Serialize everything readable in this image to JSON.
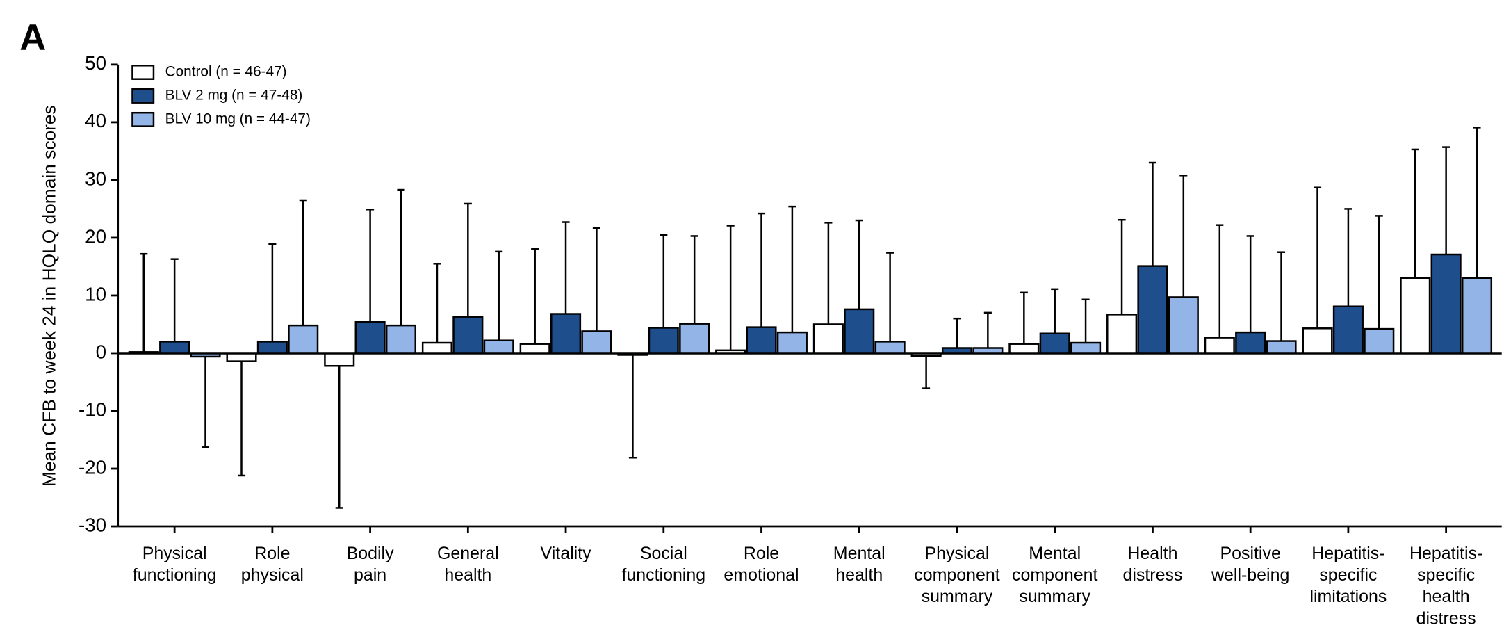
{
  "panel_label": "A",
  "chart_data": {
    "type": "bar",
    "ylabel": "Mean CFB to week 24 in HQLQ domain scores",
    "categories": [
      [
        "Physical",
        "functioning"
      ],
      [
        "Role",
        "physical"
      ],
      [
        "Bodily",
        "pain"
      ],
      [
        "General",
        "health"
      ],
      [
        "Vitality"
      ],
      [
        "Social",
        "functioning"
      ],
      [
        "Role",
        "emotional"
      ],
      [
        "Mental",
        "health"
      ],
      [
        "Physical",
        "component",
        "summary"
      ],
      [
        "Mental",
        "component",
        "summary"
      ],
      [
        "Health",
        "distress"
      ],
      [
        "Positive",
        "well-being"
      ],
      [
        "Hepatitis-",
        "specific",
        "limitations"
      ],
      [
        "Hepatitis-",
        "specific",
        "health",
        "distress"
      ]
    ],
    "series": [
      {
        "name": "Control (n = 46-47)",
        "color": "#ffffff",
        "values": [
          0.2,
          -1.4,
          -2.2,
          1.8,
          1.6,
          -0.3,
          0.5,
          5.0,
          -0.5,
          1.6,
          6.7,
          2.7,
          4.3,
          13.0
        ],
        "errors": [
          17,
          19.8,
          24.6,
          13.7,
          16.5,
          17.8,
          21.6,
          17.6,
          5.6,
          8.9,
          16.4,
          19.5,
          24.4,
          22.3
        ]
      },
      {
        "name": "BLV 2 mg (n = 47-48)",
        "color": "#1f4e8c",
        "values": [
          2.0,
          2.0,
          5.4,
          6.3,
          6.8,
          4.4,
          4.5,
          7.6,
          0.9,
          3.4,
          15.1,
          3.6,
          8.1,
          17.1
        ],
        "errors": [
          14.3,
          16.9,
          19.5,
          19.6,
          15.9,
          16.1,
          19.7,
          15.4,
          5.1,
          7.7,
          17.9,
          16.7,
          16.9,
          18.6
        ]
      },
      {
        "name": "BLV 10 mg (n = 44-47)",
        "color": "#92b4e6",
        "values": [
          -0.6,
          4.8,
          4.8,
          2.2,
          3.8,
          5.1,
          3.6,
          2.0,
          0.9,
          1.8,
          9.7,
          2.1,
          4.2,
          13.0
        ],
        "errors": [
          15.7,
          21.7,
          23.5,
          15.4,
          17.9,
          15.2,
          21.8,
          15.4,
          6.1,
          7.5,
          21.1,
          15.4,
          19.6,
          26.1
        ]
      }
    ],
    "ylim": [
      -30,
      50
    ],
    "yticks": [
      -30,
      -20,
      -10,
      0,
      10,
      20,
      30,
      40,
      50
    ],
    "legend": "top-left",
    "grid": false
  }
}
